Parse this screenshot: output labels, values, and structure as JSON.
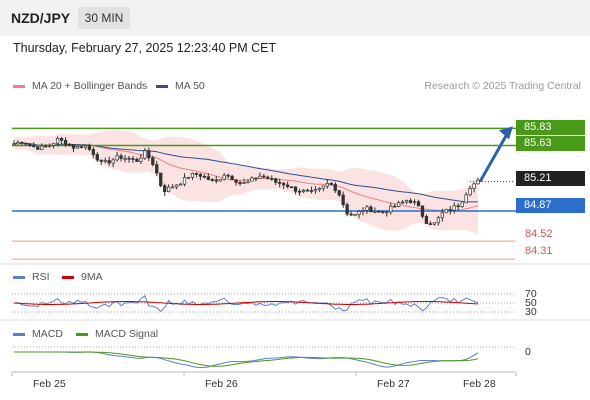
{
  "header": {
    "symbol": "NZD/JPY",
    "timeframe": "30 MIN"
  },
  "datetime": "Thursday, February 27, 2025 12:23:40 PM CET",
  "legend_main": [
    {
      "label": "MA 20 + Bollinger Bands",
      "color": "#f08080"
    },
    {
      "label": "MA 50",
      "color": "#2d4f8e"
    }
  ],
  "credit": "Research © 2025 Trading Central",
  "legend_rsi": [
    {
      "label": "RSI",
      "color": "#5b7fcf"
    },
    {
      "label": "9MA",
      "color": "#cc0000"
    }
  ],
  "legend_macd": [
    {
      "label": "MACD",
      "color": "#5b7fcf"
    },
    {
      "label": "MACD Signal",
      "color": "#4a9a1a"
    }
  ],
  "colors": {
    "resistance": "#4a9a1a",
    "support": "#2d6dcc",
    "pivot": "#d9534f",
    "arrow": "#2d5ea8",
    "last": "#222222"
  },
  "levels": [
    {
      "value": "85.83",
      "kind": "resistance"
    },
    {
      "value": "85.63",
      "kind": "resistance"
    },
    {
      "value": "85.21",
      "kind": "last"
    },
    {
      "value": "84.87",
      "kind": "support"
    },
    {
      "value": "84.52",
      "kind": "pivot"
    },
    {
      "value": "84.31",
      "kind": "pivot"
    }
  ],
  "chart_data": {
    "type": "candlestick",
    "ylim": [
      84.3,
      85.95
    ],
    "x_ticks": [
      "Feb 25",
      "Feb 26",
      "Feb 27",
      "Feb 28"
    ],
    "close_path": [
      85.65,
      85.68,
      85.62,
      85.6,
      85.63,
      85.7,
      85.66,
      85.6,
      85.64,
      85.55,
      85.42,
      85.45,
      85.5,
      85.48,
      85.45,
      85.55,
      85.4,
      85.1,
      85.15,
      85.2,
      85.28,
      85.3,
      85.25,
      85.2,
      85.3,
      85.25,
      85.18,
      85.22,
      85.28,
      85.25,
      85.2,
      85.18,
      85.12,
      85.1,
      85.08,
      85.12,
      85.2,
      85.1,
      84.85,
      84.82,
      84.9,
      84.88,
      84.85,
      84.9,
      84.95,
      85.0,
      84.95,
      84.75,
      84.72,
      84.85,
      84.9,
      84.95,
      85.15,
      85.21
    ],
    "rsi_levels": [
      "70",
      "50",
      "30"
    ],
    "macd_levels": [
      "0"
    ]
  }
}
